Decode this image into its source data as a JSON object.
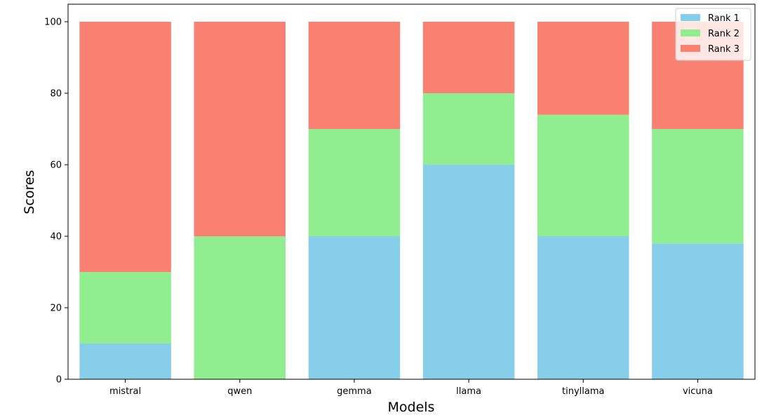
{
  "chart_data": {
    "type": "bar",
    "stacked": true,
    "title": "",
    "xlabel": "Models",
    "ylabel": "Scores",
    "ylim": [
      0,
      105
    ],
    "yticks": [
      0,
      20,
      40,
      60,
      80,
      100
    ],
    "grid": false,
    "legend_position": "top-right",
    "categories": [
      "mistral",
      "qwen",
      "gemma",
      "llama",
      "tinyllama",
      "vicuna"
    ],
    "series": [
      {
        "name": "Rank 1",
        "color": "#87ceeb",
        "values": [
          10,
          0,
          40,
          60,
          40,
          38
        ]
      },
      {
        "name": "Rank 2",
        "color": "#90ee90",
        "values": [
          20,
          40,
          30,
          20,
          34,
          32
        ]
      },
      {
        "name": "Rank 3",
        "color": "#fa8072",
        "values": [
          70,
          60,
          30,
          20,
          26,
          30
        ]
      }
    ]
  }
}
